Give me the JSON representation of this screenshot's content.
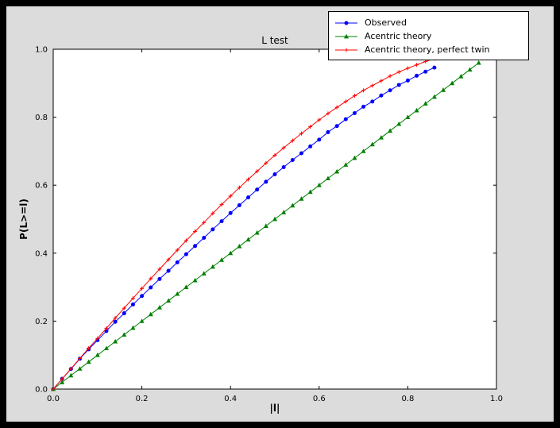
{
  "window": {
    "background": "#000000",
    "figure_background": "#dcdcdc",
    "axes_background": "#ffffff"
  },
  "chart_data": {
    "type": "line",
    "title": "L test",
    "xlabel": "|l|",
    "ylabel": "P(L>=l)",
    "xlim": [
      0,
      1
    ],
    "ylim": [
      0,
      1
    ],
    "xticks": [
      "0.0",
      "0.2",
      "0.4",
      "0.6",
      "0.8",
      "1.0"
    ],
    "yticks": [
      "0.0",
      "0.2",
      "0.4",
      "0.6",
      "0.8",
      "1.0"
    ],
    "grid": false,
    "legend_position": "upper-right",
    "series": [
      {
        "name": "Observed",
        "color": "#0000ff",
        "marker": "circle",
        "x": [
          0,
          0.02,
          0.04,
          0.06,
          0.08,
          0.1,
          0.12,
          0.14,
          0.16,
          0.18,
          0.2,
          0.22,
          0.24,
          0.26,
          0.28,
          0.3,
          0.32,
          0.34,
          0.36,
          0.38,
          0.4,
          0.42,
          0.44,
          0.46,
          0.48,
          0.5,
          0.52,
          0.54,
          0.56,
          0.58,
          0.6,
          0.62,
          0.64,
          0.66,
          0.68,
          0.7,
          0.72,
          0.74,
          0.76,
          0.78,
          0.8,
          0.82,
          0.84,
          0.86
        ],
        "y": [
          0,
          0.03,
          0.059,
          0.089,
          0.117,
          0.144,
          0.171,
          0.198,
          0.223,
          0.249,
          0.274,
          0.299,
          0.324,
          0.348,
          0.373,
          0.397,
          0.421,
          0.445,
          0.47,
          0.494,
          0.518,
          0.541,
          0.564,
          0.587,
          0.61,
          0.632,
          0.653,
          0.674,
          0.694,
          0.714,
          0.734,
          0.756,
          0.774,
          0.794,
          0.812,
          0.831,
          0.846,
          0.864,
          0.879,
          0.895,
          0.908,
          0.922,
          0.934,
          0.946
        ]
      },
      {
        "name": "Acentric theory",
        "color": "#008000",
        "marker": "triangle",
        "x": [
          0,
          0.02,
          0.04,
          0.06,
          0.08,
          0.1,
          0.12,
          0.14,
          0.16,
          0.18,
          0.2,
          0.22,
          0.24,
          0.26,
          0.28,
          0.3,
          0.32,
          0.34,
          0.36,
          0.38,
          0.4,
          0.42,
          0.44,
          0.46,
          0.48,
          0.5,
          0.52,
          0.54,
          0.56,
          0.58,
          0.6,
          0.62,
          0.64,
          0.66,
          0.68,
          0.7,
          0.72,
          0.74,
          0.76,
          0.78,
          0.8,
          0.82,
          0.84,
          0.86,
          0.88,
          0.9,
          0.92,
          0.94,
          0.96
        ],
        "y": [
          0,
          0.02,
          0.04,
          0.06,
          0.08,
          0.1,
          0.12,
          0.14,
          0.16,
          0.18,
          0.2,
          0.22,
          0.24,
          0.26,
          0.28,
          0.3,
          0.32,
          0.34,
          0.36,
          0.38,
          0.4,
          0.42,
          0.44,
          0.46,
          0.48,
          0.5,
          0.52,
          0.54,
          0.56,
          0.58,
          0.6,
          0.62,
          0.64,
          0.66,
          0.68,
          0.7,
          0.72,
          0.74,
          0.76,
          0.78,
          0.8,
          0.82,
          0.84,
          0.86,
          0.88,
          0.9,
          0.92,
          0.94,
          0.96
        ]
      },
      {
        "name": "Acentric theory, perfect twin",
        "color": "#ff0000",
        "marker": "plus",
        "x": [
          0,
          0.02,
          0.04,
          0.06,
          0.08,
          0.1,
          0.12,
          0.14,
          0.16,
          0.18,
          0.2,
          0.22,
          0.24,
          0.26,
          0.28,
          0.3,
          0.32,
          0.34,
          0.36,
          0.38,
          0.4,
          0.42,
          0.44,
          0.46,
          0.48,
          0.5,
          0.52,
          0.54,
          0.56,
          0.58,
          0.6,
          0.62,
          0.64,
          0.66,
          0.68,
          0.7,
          0.72,
          0.74,
          0.76,
          0.78,
          0.8,
          0.82,
          0.84,
          0.86
        ],
        "y": [
          0,
          0.03,
          0.06,
          0.09,
          0.12,
          0.149,
          0.179,
          0.209,
          0.238,
          0.267,
          0.296,
          0.325,
          0.353,
          0.381,
          0.409,
          0.437,
          0.464,
          0.49,
          0.517,
          0.543,
          0.568,
          0.593,
          0.617,
          0.641,
          0.665,
          0.688,
          0.71,
          0.731,
          0.752,
          0.772,
          0.792,
          0.811,
          0.829,
          0.846,
          0.863,
          0.879,
          0.893,
          0.907,
          0.921,
          0.933,
          0.944,
          0.954,
          0.964,
          0.972
        ]
      }
    ]
  }
}
